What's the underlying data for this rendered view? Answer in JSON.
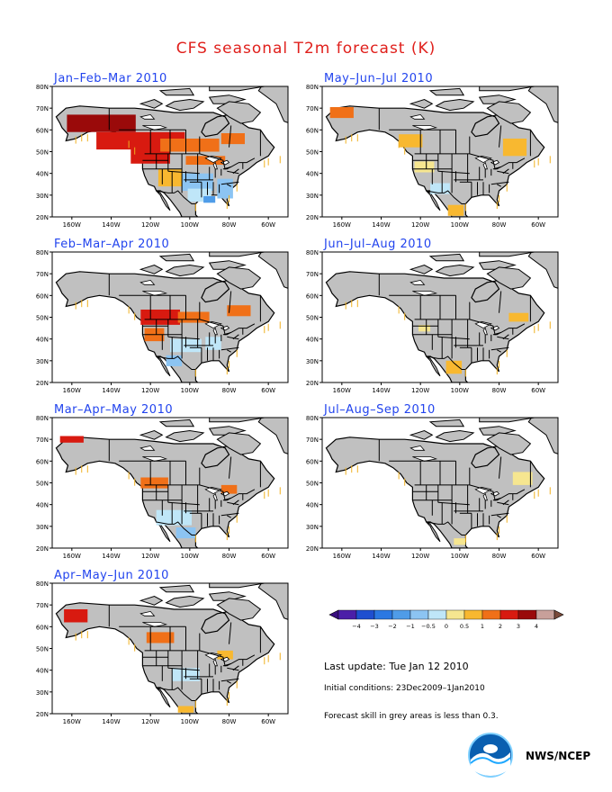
{
  "title": "CFS seasonal T2m forecast (K)",
  "panels": [
    {
      "label": "Jan–Feb–Mar 2010",
      "anomaly": [
        {
          "lon": -145,
          "lat": 63,
          "dlon": 35,
          "dlat": 8,
          "v": 3
        },
        {
          "lon": -125,
          "lat": 55,
          "dlon": 45,
          "dlat": 8,
          "v": 2
        },
        {
          "lon": -120,
          "lat": 48,
          "dlon": 20,
          "dlat": 7,
          "v": 2
        },
        {
          "lon": -100,
          "lat": 53,
          "dlon": 30,
          "dlat": 6,
          "v": 1
        },
        {
          "lon": -78,
          "lat": 56,
          "dlon": 12,
          "dlat": 5,
          "v": 1
        },
        {
          "lon": -92,
          "lat": 46,
          "dlon": 20,
          "dlat": 4,
          "v": 1
        },
        {
          "lon": -110,
          "lat": 38,
          "dlon": 12,
          "dlat": 8,
          "v": 0.5
        },
        {
          "lon": -96,
          "lat": 36,
          "dlon": 16,
          "dlat": 8,
          "v": -1
        },
        {
          "lon": -82,
          "lat": 33,
          "dlon": 8,
          "dlat": 9,
          "v": -1
        },
        {
          "lon": -95,
          "lat": 30,
          "dlon": 12,
          "dlat": 6,
          "v": -0.5
        },
        {
          "lon": -90,
          "lat": 28,
          "dlon": 6,
          "dlat": 3,
          "v": -2
        }
      ]
    },
    {
      "label": "Feb–Mar–Apr 2010",
      "anomaly": [
        {
          "lon": -115,
          "lat": 50,
          "dlon": 20,
          "dlat": 7,
          "v": 2
        },
        {
          "lon": -98,
          "lat": 50,
          "dlon": 16,
          "dlat": 5,
          "v": 1
        },
        {
          "lon": -75,
          "lat": 53,
          "dlon": 12,
          "dlat": 5,
          "v": 1
        },
        {
          "lon": -118,
          "lat": 42,
          "dlon": 10,
          "dlat": 6,
          "v": 1
        },
        {
          "lon": -102,
          "lat": 37,
          "dlon": 16,
          "dlat": 6,
          "v": -0.5
        },
        {
          "lon": -88,
          "lat": 38,
          "dlon": 8,
          "dlat": 6,
          "v": -0.5
        },
        {
          "lon": -108,
          "lat": 30,
          "dlon": 8,
          "dlat": 5,
          "v": -1
        }
      ]
    },
    {
      "label": "Mar–Apr–May 2010",
      "anomaly": [
        {
          "lon": -160,
          "lat": 70,
          "dlon": 12,
          "dlat": 3,
          "v": 2
        },
        {
          "lon": -118,
          "lat": 50,
          "dlon": 14,
          "dlat": 5,
          "v": 1
        },
        {
          "lon": -80,
          "lat": 47,
          "dlon": 8,
          "dlat": 4,
          "v": 1
        },
        {
          "lon": -108,
          "lat": 34,
          "dlon": 18,
          "dlat": 7,
          "v": -0.5
        },
        {
          "lon": -102,
          "lat": 27,
          "dlon": 10,
          "dlat": 5,
          "v": -1
        }
      ]
    },
    {
      "label": "Apr–May–Jun 2010",
      "anomaly": [
        {
          "lon": -158,
          "lat": 65,
          "dlon": 12,
          "dlat": 6,
          "v": 2
        },
        {
          "lon": -115,
          "lat": 55,
          "dlon": 14,
          "dlat": 5,
          "v": 1
        },
        {
          "lon": -82,
          "lat": 47,
          "dlon": 8,
          "dlat": 4,
          "v": 0.5
        },
        {
          "lon": -102,
          "lat": 38,
          "dlon": 14,
          "dlat": 6,
          "v": -0.5
        },
        {
          "lon": -102,
          "lat": 22,
          "dlon": 8,
          "dlat": 3,
          "v": 0.5
        }
      ]
    },
    {
      "label": "May–Jun–Jul 2010",
      "anomaly": [
        {
          "lon": -160,
          "lat": 68,
          "dlon": 12,
          "dlat": 5,
          "v": 1
        },
        {
          "lon": -125,
          "lat": 55,
          "dlon": 12,
          "dlat": 6,
          "v": 0.5
        },
        {
          "lon": -72,
          "lat": 52,
          "dlon": 12,
          "dlat": 8,
          "v": 0.5
        },
        {
          "lon": -118,
          "lat": 43,
          "dlon": 10,
          "dlat": 5,
          "v": 0
        },
        {
          "lon": -110,
          "lat": 33,
          "dlon": 10,
          "dlat": 5,
          "v": -0.5
        },
        {
          "lon": -102,
          "lat": 23,
          "dlon": 8,
          "dlat": 5,
          "v": 0.5
        }
      ]
    },
    {
      "label": "Jun–Jul–Aug 2010",
      "anomaly": [
        {
          "lon": -70,
          "lat": 50,
          "dlon": 10,
          "dlat": 4,
          "v": 0.5
        },
        {
          "lon": -118,
          "lat": 45,
          "dlon": 6,
          "dlat": 3,
          "v": 0
        },
        {
          "lon": -103,
          "lat": 27,
          "dlon": 8,
          "dlat": 6,
          "v": 0.5
        }
      ]
    },
    {
      "label": "Jul–Aug–Sep 2010",
      "anomaly": [
        {
          "lon": -68,
          "lat": 52,
          "dlon": 10,
          "dlat": 6,
          "v": 0
        },
        {
          "lon": -100,
          "lat": 23,
          "dlon": 6,
          "dlat": 3,
          "v": 0
        }
      ]
    }
  ],
  "colorbar": {
    "labels": [
      "−4",
      "−3",
      "−2",
      "−1",
      "−0.5",
      "0",
      "0.5",
      "1",
      "2",
      "3",
      "4"
    ],
    "colors": [
      "#4b1fa8",
      "#1f4fd0",
      "#2b78e2",
      "#4f9ce8",
      "#8cc4f2",
      "#bfe6f8",
      "#f6e690",
      "#f8b830",
      "#f07018",
      "#d81a10",
      "#9a0a0a",
      "#c8a09a"
    ],
    "end_low": "#3a0f80",
    "end_high": "#7a4a3a"
  },
  "info": {
    "last_update": "Last update: Tue Jan 12 2010",
    "initial_conditions": "Initial conditions: 23Dec2009–1Jan2010",
    "skill_note": "Forecast skill in grey areas is less than 0.3."
  },
  "map_axes": {
    "lat_labels": [
      "80N",
      "70N",
      "60N",
      "50N",
      "40N",
      "30N",
      "20N"
    ],
    "lon_labels": [
      "160W",
      "140W",
      "120W",
      "100W",
      "80W",
      "60W"
    ],
    "land_color": "#c0c0c0",
    "no_data_color": "#ffffff"
  },
  "logo_text": "NWS/NCEP"
}
